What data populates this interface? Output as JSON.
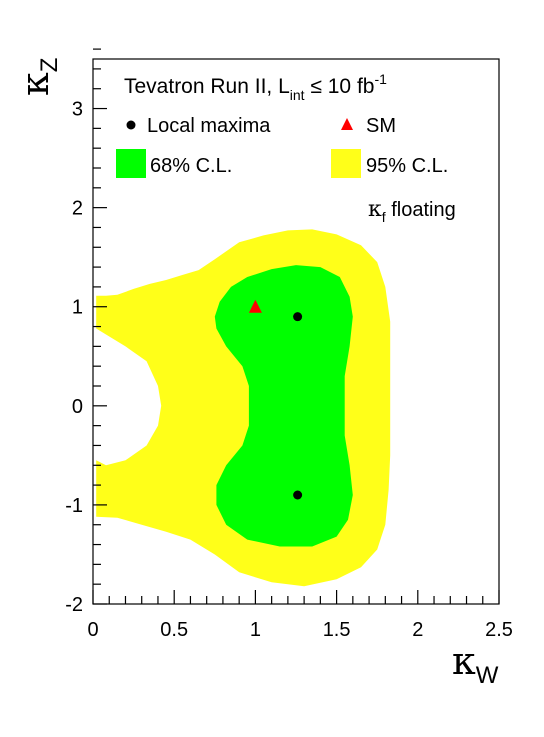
{
  "chart_data": {
    "type": "contour",
    "legend_title": {
      "main": "Tevatron Run II, L",
      "sub": "int",
      "rel": " ≤ 10 fb",
      "sup": "-1"
    },
    "legend": {
      "local_maxima": "Local maxima",
      "sm": "SM",
      "cl68": "68% C.L.",
      "cl95": "95% C.L."
    },
    "annotation": {
      "main": "κ",
      "sub": "f",
      "rest": " floating"
    },
    "xlabel": {
      "symbol": "κ",
      "sub": "W"
    },
    "ylabel": {
      "symbol": "κ",
      "sub": "Z"
    },
    "xlim": [
      0,
      2.5
    ],
    "ylim": [
      -2,
      3.5
    ],
    "xticks": [
      0,
      0.5,
      1,
      1.5,
      2,
      2.5
    ],
    "xtick_labels": [
      "0",
      "0.5",
      "1",
      "1.5",
      "2",
      "2.5"
    ],
    "yticks": [
      -2,
      -1,
      0,
      1,
      2,
      3
    ],
    "ytick_labels": [
      "-2",
      "-1",
      "0",
      "1",
      "2",
      "3"
    ],
    "colors": {
      "cl68": "#00ff00",
      "cl95": "#ffff19",
      "sm": "#ff0000",
      "maxima": "#000000"
    },
    "sm_point": {
      "x": 1.0,
      "y": 1.0
    },
    "local_maxima": [
      {
        "x": 1.26,
        "y": 0.9
      },
      {
        "x": 1.26,
        "y": -0.9
      }
    ],
    "contour_95": [
      [
        0.02,
        1.11
      ],
      [
        0.08,
        1.11
      ],
      [
        0.15,
        1.12
      ],
      [
        0.25,
        1.18
      ],
      [
        0.35,
        1.23
      ],
      [
        0.45,
        1.27
      ],
      [
        0.55,
        1.32
      ],
      [
        0.65,
        1.37
      ],
      [
        0.75,
        1.48
      ],
      [
        0.9,
        1.65
      ],
      [
        1.05,
        1.72
      ],
      [
        1.2,
        1.77
      ],
      [
        1.35,
        1.78
      ],
      [
        1.5,
        1.73
      ],
      [
        1.65,
        1.62
      ],
      [
        1.75,
        1.45
      ],
      [
        1.8,
        1.2
      ],
      [
        1.83,
        0.85
      ],
      [
        1.83,
        0.5
      ],
      [
        1.83,
        0
      ],
      [
        1.83,
        -0.5
      ],
      [
        1.82,
        -0.85
      ],
      [
        1.8,
        -1.2
      ],
      [
        1.75,
        -1.45
      ],
      [
        1.65,
        -1.63
      ],
      [
        1.5,
        -1.75
      ],
      [
        1.3,
        -1.82
      ],
      [
        1.1,
        -1.78
      ],
      [
        0.9,
        -1.68
      ],
      [
        0.75,
        -1.5
      ],
      [
        0.6,
        -1.35
      ],
      [
        0.45,
        -1.27
      ],
      [
        0.3,
        -1.2
      ],
      [
        0.15,
        -1.13
      ],
      [
        0.02,
        -1.12
      ],
      [
        0.02,
        -0.55
      ],
      [
        0.08,
        -0.6
      ],
      [
        0.2,
        -0.55
      ],
      [
        0.33,
        -0.4
      ],
      [
        0.4,
        -0.2
      ],
      [
        0.42,
        0
      ],
      [
        0.4,
        0.2
      ],
      [
        0.33,
        0.45
      ],
      [
        0.2,
        0.6
      ],
      [
        0.08,
        0.72
      ],
      [
        0.02,
        0.78
      ]
    ],
    "contour_68": [
      [
        0.75,
        0.9
      ],
      [
        0.78,
        1.05
      ],
      [
        0.85,
        1.2
      ],
      [
        0.95,
        1.3
      ],
      [
        1.1,
        1.38
      ],
      [
        1.25,
        1.42
      ],
      [
        1.4,
        1.4
      ],
      [
        1.52,
        1.3
      ],
      [
        1.58,
        1.1
      ],
      [
        1.6,
        0.9
      ],
      [
        1.58,
        0.6
      ],
      [
        1.55,
        0.3
      ],
      [
        1.55,
        0
      ],
      [
        1.55,
        -0.3
      ],
      [
        1.58,
        -0.6
      ],
      [
        1.6,
        -0.9
      ],
      [
        1.57,
        -1.15
      ],
      [
        1.5,
        -1.32
      ],
      [
        1.35,
        -1.42
      ],
      [
        1.15,
        -1.42
      ],
      [
        0.95,
        -1.35
      ],
      [
        0.82,
        -1.2
      ],
      [
        0.76,
        -1.0
      ],
      [
        0.76,
        -0.8
      ],
      [
        0.82,
        -0.6
      ],
      [
        0.92,
        -0.4
      ],
      [
        0.96,
        -0.2
      ],
      [
        0.96,
        0
      ],
      [
        0.96,
        0.2
      ],
      [
        0.92,
        0.4
      ],
      [
        0.82,
        0.6
      ],
      [
        0.76,
        0.78
      ]
    ]
  }
}
